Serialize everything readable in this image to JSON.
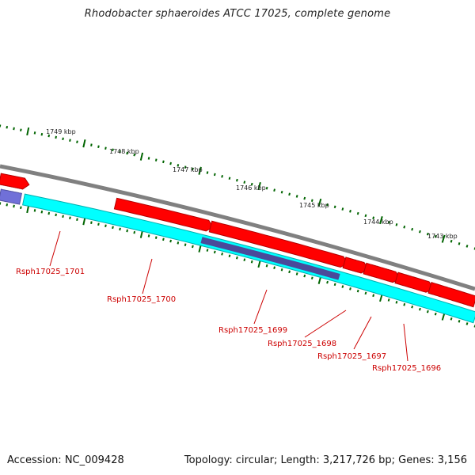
{
  "title": "Rhodobacter sphaeroides ATCC 17025, complete genome",
  "accession": "Accession: NC_009428",
  "summary": "Topology: circular; Length: 3,217,726 bp; Genes: 3,156",
  "ruler": {
    "labels": [
      "1749 kbp",
      "1748 kbp",
      "1747 kbp",
      "1746 kbp",
      "1745 kbp",
      "1744 kbp",
      "1743 kbp"
    ]
  },
  "genes": [
    "Rsph17025_1701",
    "Rsph17025_1700",
    "Rsph17025_1699",
    "Rsph17025_1698",
    "Rsph17025_1697",
    "Rsph17025_1696"
  ],
  "colors": {
    "forward": "#ff0000",
    "reverse": "#00ffff",
    "reverse_dark": "#4a4a9a",
    "backbone": "#808080",
    "tick": "#006400",
    "label": "#cc0000"
  }
}
